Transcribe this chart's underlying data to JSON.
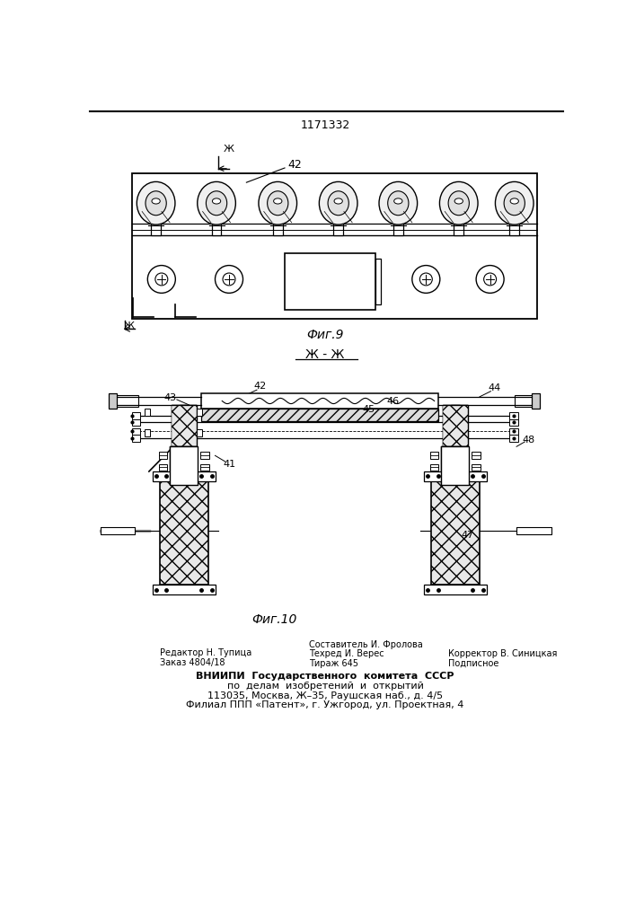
{
  "patent_number": "1171332",
  "bg": "#ffffff",
  "fig9_label": "Фиг.9",
  "fig10_label": "Фиг.10",
  "section_label": "Ж - Ж",
  "footer_left_line1": "Редактор Н. Тупица",
  "footer_left_line2": "Заказ 4804/18",
  "footer_center_line1": "Составитель И. Фролова",
  "footer_center_line2": "Техред И. Верес",
  "footer_center_line3": "Тираж 645",
  "footer_right_line1": "Корректор В. Синицкая",
  "footer_right_line2": "Подписное",
  "footer_vniipи": "ВНИИПИ  Государственного  комитета  СССР",
  "footer_line2": "по  делам  изобретений  и  открытий",
  "footer_line3": "113035, Москва, Ж–35, Раушская наб., д. 4/5",
  "footer_line4": "Филиал ППП «Патент», г. Ужгород, ул. Проектная, 4"
}
